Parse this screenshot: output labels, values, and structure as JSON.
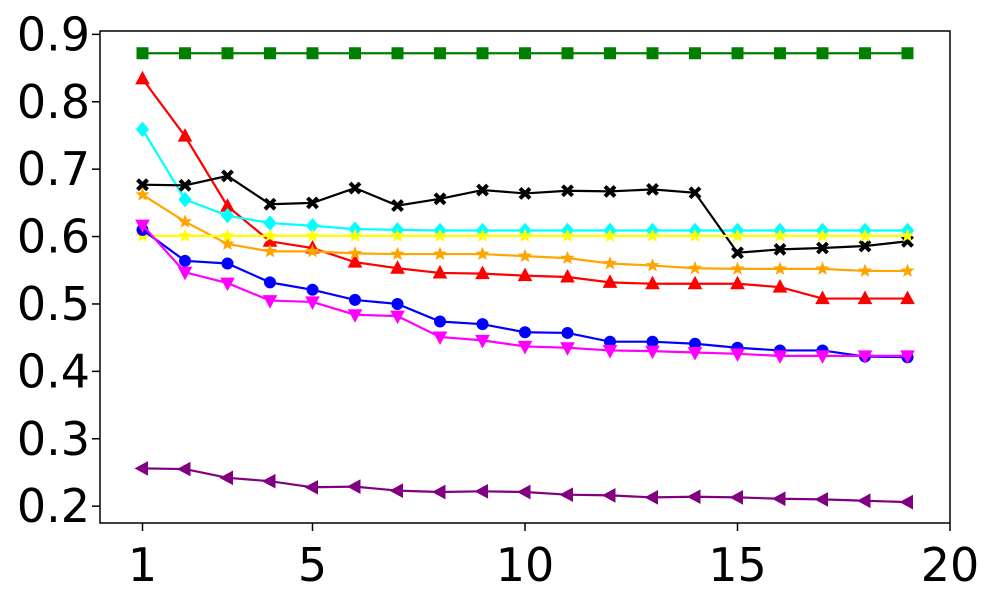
{
  "chart_data": {
    "type": "line",
    "title": "",
    "xlabel": "",
    "ylabel": "",
    "xlim": [
      0,
      20
    ],
    "ylim": [
      0.175,
      0.905
    ],
    "xticks": [
      1,
      5,
      10,
      15,
      20
    ],
    "xtick_labels": [
      "1",
      "5",
      "10",
      "15",
      "20"
    ],
    "yticks": [
      0.2,
      0.3,
      0.4,
      0.5,
      0.6,
      0.7,
      0.8,
      0.9
    ],
    "ytick_labels": [
      "0.2",
      "0.3",
      "0.4",
      "0.5",
      "0.6",
      "0.7",
      "0.8",
      "0.9"
    ],
    "grid": false,
    "legend": "none",
    "x": [
      1,
      2,
      3,
      4,
      5,
      6,
      7,
      8,
      9,
      10,
      11,
      12,
      13,
      14,
      15,
      16,
      17,
      18,
      19
    ],
    "series": [
      {
        "color": "#008000",
        "marker": "square",
        "values": [
          0.872,
          0.872,
          0.872,
          0.872,
          0.872,
          0.872,
          0.872,
          0.872,
          0.872,
          0.872,
          0.872,
          0.872,
          0.872,
          0.872,
          0.872,
          0.872,
          0.872,
          0.872,
          0.872
        ]
      },
      {
        "color": "#ff0000",
        "marker": "triangle-up",
        "values": [
          0.834,
          0.749,
          0.645,
          0.593,
          0.583,
          0.562,
          0.553,
          0.546,
          0.545,
          0.542,
          0.54,
          0.532,
          0.53,
          0.53,
          0.53,
          0.525,
          0.508,
          0.508,
          0.508
        ]
      },
      {
        "color": "#00ffff",
        "marker": "diamond",
        "values": [
          0.759,
          0.655,
          0.631,
          0.62,
          0.616,
          0.611,
          0.61,
          0.609,
          0.609,
          0.609,
          0.609,
          0.609,
          0.609,
          0.609,
          0.609,
          0.609,
          0.609,
          0.609,
          0.609
        ]
      },
      {
        "color": "#000000",
        "marker": "x",
        "values": [
          0.677,
          0.676,
          0.69,
          0.648,
          0.65,
          0.672,
          0.646,
          0.656,
          0.669,
          0.664,
          0.668,
          0.667,
          0.67,
          0.665,
          0.576,
          0.581,
          0.583,
          0.586,
          0.593
        ]
      },
      {
        "color": "#ffa500",
        "marker": "star",
        "values": [
          0.662,
          0.622,
          0.589,
          0.578,
          0.578,
          0.575,
          0.574,
          0.574,
          0.574,
          0.571,
          0.568,
          0.56,
          0.557,
          0.553,
          0.552,
          0.552,
          0.552,
          0.549,
          0.549
        ]
      },
      {
        "color": "#ffff00",
        "marker": "star",
        "values": [
          0.601,
          0.601,
          0.601,
          0.601,
          0.601,
          0.601,
          0.601,
          0.601,
          0.601,
          0.601,
          0.601,
          0.601,
          0.601,
          0.601,
          0.601,
          0.601,
          0.601,
          0.601,
          0.601
        ]
      },
      {
        "color": "#0000ff",
        "marker": "circle",
        "values": [
          0.61,
          0.564,
          0.56,
          0.532,
          0.521,
          0.506,
          0.5,
          0.474,
          0.47,
          0.458,
          0.457,
          0.444,
          0.444,
          0.441,
          0.435,
          0.431,
          0.431,
          0.422,
          0.421
        ]
      },
      {
        "color": "#ff00ff",
        "marker": "triangle-down",
        "values": [
          0.617,
          0.547,
          0.531,
          0.505,
          0.503,
          0.484,
          0.482,
          0.451,
          0.446,
          0.437,
          0.435,
          0.431,
          0.43,
          0.428,
          0.426,
          0.423,
          0.423,
          0.423,
          0.423
        ]
      },
      {
        "color": "#800080",
        "marker": "triangle-left",
        "values": [
          0.256,
          0.255,
          0.242,
          0.237,
          0.228,
          0.229,
          0.223,
          0.221,
          0.222,
          0.221,
          0.217,
          0.216,
          0.213,
          0.214,
          0.213,
          0.211,
          0.21,
          0.208,
          0.206
        ]
      }
    ]
  }
}
